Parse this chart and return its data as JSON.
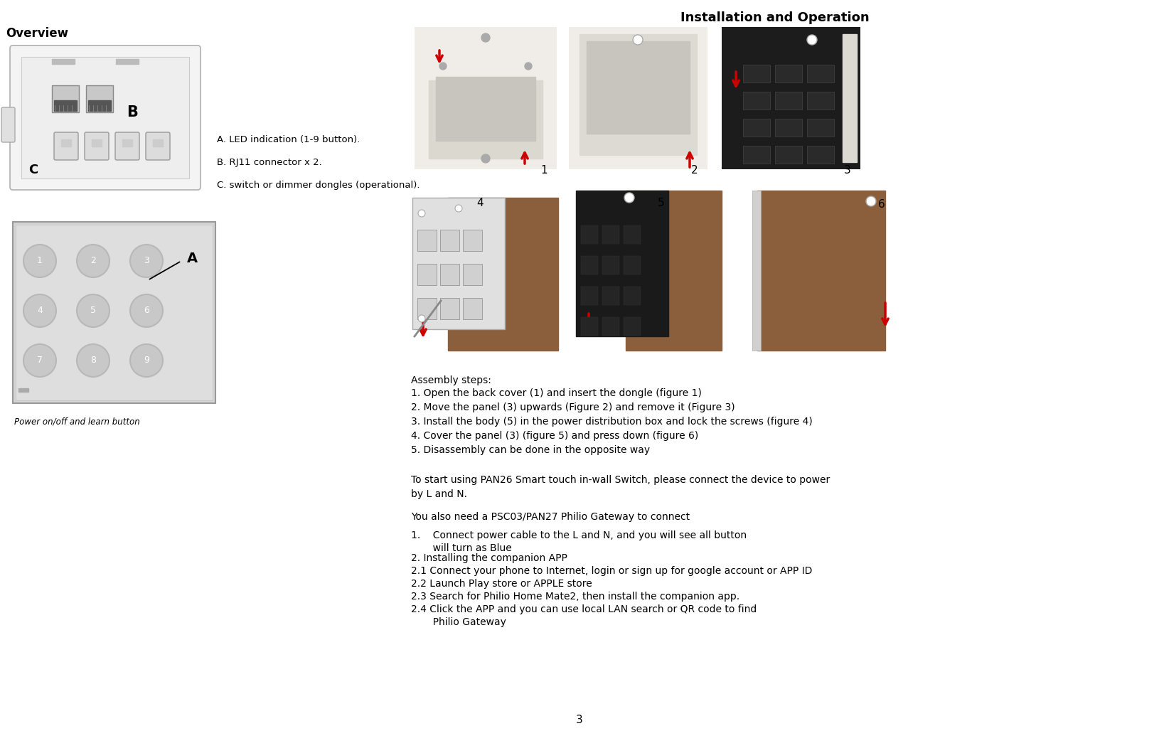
{
  "page_number": "3",
  "background_color": "#ffffff",
  "left_title": "Overview",
  "right_title": "Installation and Operation",
  "label_A": "A. LED indication (1-9 button).",
  "label_B": "B. RJ11 connector x 2.",
  "label_C": "C. switch or dimmer dongles (operational).",
  "assembly_heading": "Assembly steps:",
  "assembly_steps": [
    "1. Open the back cover (1) and insert the dongle (figure 1)",
    "2. Move the panel (3) upwards (Figure 2) and remove it (Figure 3)",
    "3. Install the body (5) in the power distribution box and lock the screws (figure 4)",
    "4. Cover the panel (3) (figure 5) and press down (figure 6)",
    "5. Disassembly can be done in the opposite way"
  ],
  "paragraph1": "To start using PAN26 Smart touch in-wall Switch, please connect the device to power\nby L and N.",
  "paragraph2": "You also need a PSC03/PAN27 Philio Gateway to connect",
  "instructions": [
    "1.    Connect power cable to the L and N, and you will see all button\n       will turn as Blue",
    "2. Installing the companion APP",
    "2.1 Connect your phone to Internet, login or sign up for google account or APP ID",
    "2.2 Launch Play store or APPLE store",
    "2.3 Search for Philio Home Mate2, then install the companion app.",
    "2.4 Click the APP and you can use local LAN search or QR code to find\n       Philio Gateway"
  ],
  "power_label": "Power on/off and learn button",
  "button_labels": [
    "1",
    "2",
    "3",
    "4",
    "5",
    "6",
    "7",
    "8",
    "9"
  ],
  "fig_bg_row1": [
    "#f2f2f0",
    "#f2f2f0",
    "#1a1a1a"
  ],
  "fig_bg_row2_brown": "#8B5E3C",
  "fig_bg_row2_black": "#1a1a1a",
  "fig_bg_row2_panel": "#e0e0e0"
}
